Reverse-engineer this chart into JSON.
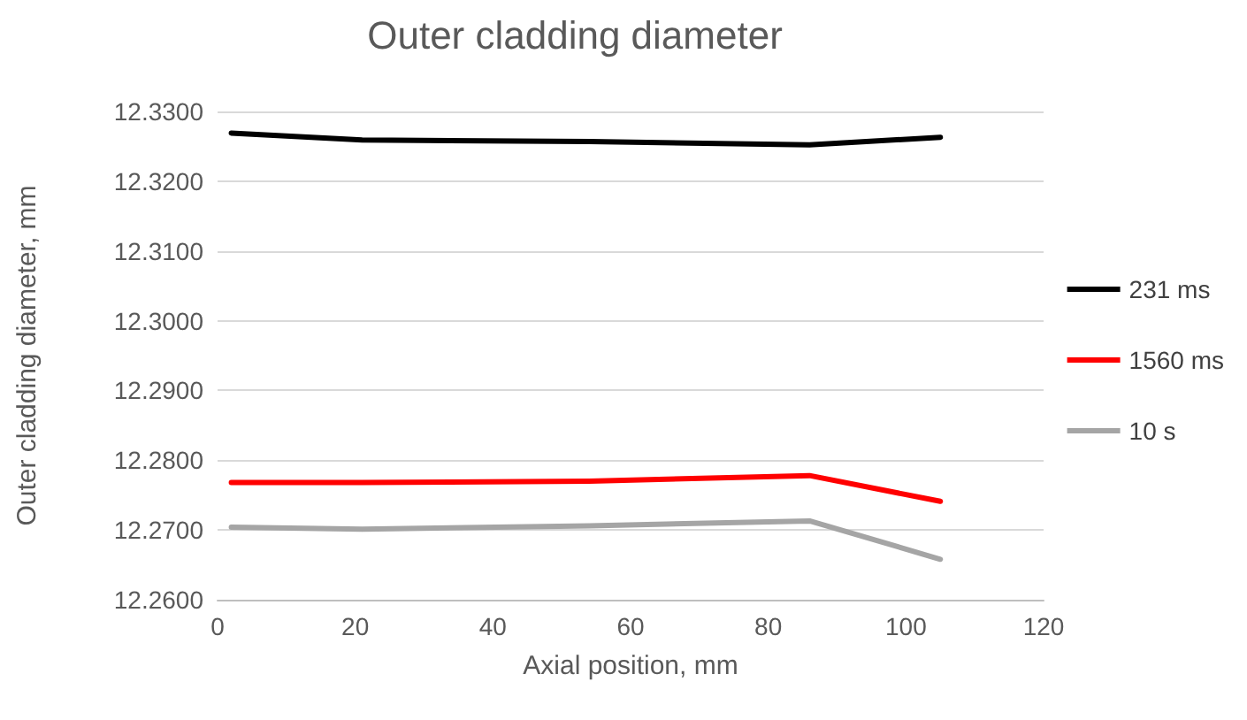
{
  "chart_data": {
    "type": "line",
    "title": "Outer cladding diameter",
    "xlabel": "Axial position, mm",
    "ylabel": "Outer cladding diameter, mm",
    "x": [
      2,
      21,
      54,
      86,
      105
    ],
    "series": [
      {
        "name": "231 ms",
        "color": "#000000",
        "values": [
          12.3269,
          12.3259,
          12.3257,
          12.3252,
          12.3263
        ]
      },
      {
        "name": "1560 ms",
        "color": "#ff0000",
        "values": [
          12.2768,
          12.2768,
          12.277,
          12.2778,
          12.2741
        ]
      },
      {
        "name": "10 s",
        "color": "#a5a5a5",
        "values": [
          12.2704,
          12.2701,
          12.2706,
          12.2713,
          12.2658
        ]
      }
    ],
    "xlim": [
      0,
      120
    ],
    "xticks": [
      0,
      20,
      40,
      60,
      80,
      100,
      120
    ],
    "ylim": [
      12.26,
      12.33
    ],
    "yticks": [
      {
        "value": 12.26,
        "label": "12.2600"
      },
      {
        "value": 12.27,
        "label": "12.2700"
      },
      {
        "value": 12.28,
        "label": "12.2800"
      },
      {
        "value": 12.29,
        "label": "12.2900"
      },
      {
        "value": 12.3,
        "label": "12.3000"
      },
      {
        "value": 12.31,
        "label": "12.3100"
      },
      {
        "value": 12.32,
        "label": "12.3200"
      },
      {
        "value": 12.33,
        "label": "12.3300"
      }
    ],
    "grid": "y",
    "legend": "right",
    "marker": "none",
    "line_style": "solid"
  }
}
